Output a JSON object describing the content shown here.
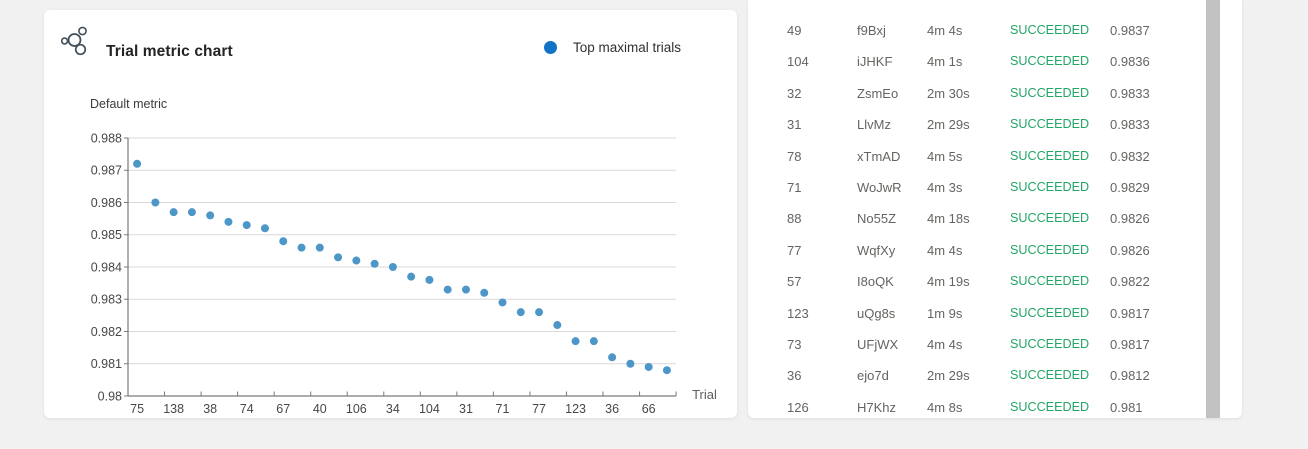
{
  "colors": {
    "page_background": "#f1f1f1",
    "card_background": "#ffffff",
    "legend_blue": "#1173c5",
    "point_blue": "#4c96c8",
    "success_green": "#23a566",
    "grid_line": "#d9d9d9",
    "axis_line": "#7a7a78"
  },
  "chart_card": {
    "title": "Trial metric chart",
    "icon": "trials-cluster-icon",
    "legend_label": "Top maximal trials",
    "legend_color": "#1173c5",
    "y_axis_title": "Default metric",
    "x_axis_title": "Trial"
  },
  "chart_data": {
    "type": "scatter",
    "title": "Trial metric chart",
    "xlabel": "Trial",
    "ylabel": "Default metric",
    "ylim": [
      0.98,
      0.988
    ],
    "grid": "horizontal",
    "legend_position": "top-right",
    "y_ticks": [
      "0.988",
      "0.987",
      "0.986",
      "0.985",
      "0.984",
      "0.983",
      "0.982",
      "0.981",
      "0.98"
    ],
    "x_tick_labels": [
      "75",
      "138",
      "38",
      "74",
      "67",
      "40",
      "106",
      "34",
      "104",
      "31",
      "71",
      "77",
      "123",
      "36",
      "66"
    ],
    "series": [
      {
        "name": "Top maximal trials",
        "color": "#4c96c8",
        "values": [
          0.9872,
          0.986,
          0.9857,
          0.9857,
          0.9856,
          0.9854,
          0.9853,
          0.9852,
          0.9848,
          0.9846,
          0.9846,
          0.9843,
          0.9842,
          0.9841,
          0.984,
          0.9837,
          0.9836,
          0.9833,
          0.9833,
          0.9832,
          0.9829,
          0.9826,
          0.9826,
          0.9822,
          0.9817,
          0.9817,
          0.9812,
          0.981,
          0.9809,
          0.9808
        ]
      }
    ]
  },
  "trials_table": {
    "status_color": "#23a566",
    "rows": [
      {
        "number": "49",
        "id": "f9Bxj",
        "duration": "4m 4s",
        "status": "SUCCEEDED",
        "metric": "0.9837"
      },
      {
        "number": "104",
        "id": "iJHKF",
        "duration": "4m 1s",
        "status": "SUCCEEDED",
        "metric": "0.9836"
      },
      {
        "number": "32",
        "id": "ZsmEo",
        "duration": "2m 30s",
        "status": "SUCCEEDED",
        "metric": "0.9833"
      },
      {
        "number": "31",
        "id": "LlvMz",
        "duration": "2m 29s",
        "status": "SUCCEEDED",
        "metric": "0.9833"
      },
      {
        "number": "78",
        "id": "xTmAD",
        "duration": "4m 5s",
        "status": "SUCCEEDED",
        "metric": "0.9832"
      },
      {
        "number": "71",
        "id": "WoJwR",
        "duration": "4m 3s",
        "status": "SUCCEEDED",
        "metric": "0.9829"
      },
      {
        "number": "88",
        "id": "No55Z",
        "duration": "4m 18s",
        "status": "SUCCEEDED",
        "metric": "0.9826"
      },
      {
        "number": "77",
        "id": "WqfXy",
        "duration": "4m 4s",
        "status": "SUCCEEDED",
        "metric": "0.9826"
      },
      {
        "number": "57",
        "id": "I8oQK",
        "duration": "4m 19s",
        "status": "SUCCEEDED",
        "metric": "0.9822"
      },
      {
        "number": "123",
        "id": "uQg8s",
        "duration": "1m 9s",
        "status": "SUCCEEDED",
        "metric": "0.9817"
      },
      {
        "number": "73",
        "id": "UFjWX",
        "duration": "4m 4s",
        "status": "SUCCEEDED",
        "metric": "0.9817"
      },
      {
        "number": "36",
        "id": "ejo7d",
        "duration": "2m 29s",
        "status": "SUCCEEDED",
        "metric": "0.9812"
      },
      {
        "number": "126",
        "id": "H7Khz",
        "duration": "4m 8s",
        "status": "SUCCEEDED",
        "metric": "0.981"
      }
    ]
  }
}
